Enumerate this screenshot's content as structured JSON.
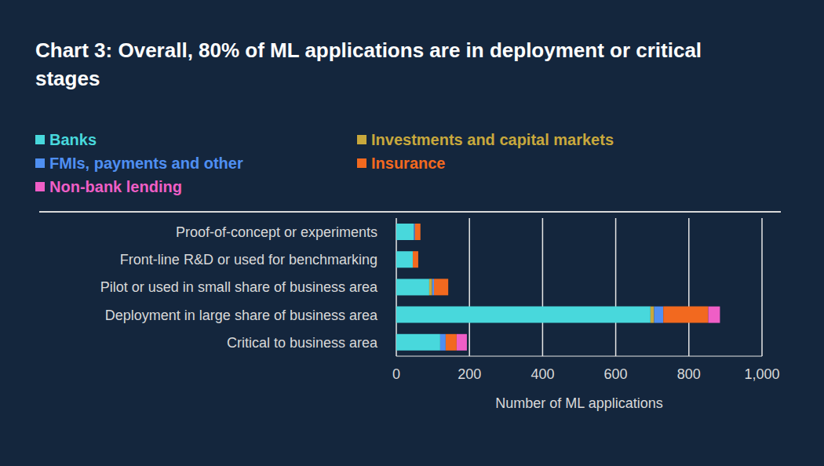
{
  "chart_data": {
    "type": "bar",
    "title": "Chart 3: Overall, 80% of ML applications are in deployment or critical stages",
    "orientation": "horizontal",
    "stacked": true,
    "grid": true,
    "legend": "top",
    "categories": [
      "Proof-of-concept or experiments",
      "Front-line R&D or used for benchmarking",
      "Pilot or used in small share of business area",
      "Deployment in large share of business area",
      "Critical to business area"
    ],
    "series": [
      {
        "name": "Banks",
        "color": "#48d8dc",
        "values": [
          48,
          45,
          90,
          695,
          120
        ]
      },
      {
        "name": "Investments and capital markets",
        "color": "#c8a83c",
        "values": [
          0,
          0,
          8,
          10,
          0
        ]
      },
      {
        "name": "FMIs, payments and other",
        "color": "#4f8ff2",
        "values": [
          3,
          0,
          5,
          25,
          15
        ]
      },
      {
        "name": "Insurance",
        "color": "#f2691f",
        "values": [
          15,
          15,
          39,
          123,
          30
        ]
      },
      {
        "name": "Non-bank lending",
        "color": "#ef5ec6",
        "values": [
          0,
          0,
          0,
          32,
          28
        ]
      }
    ],
    "xlabel": "Number of ML applications",
    "xlim": [
      0,
      1000
    ],
    "xticks": [
      0,
      200,
      400,
      600,
      800,
      {
        "value": 1000,
        "label": "1,000"
      }
    ]
  }
}
